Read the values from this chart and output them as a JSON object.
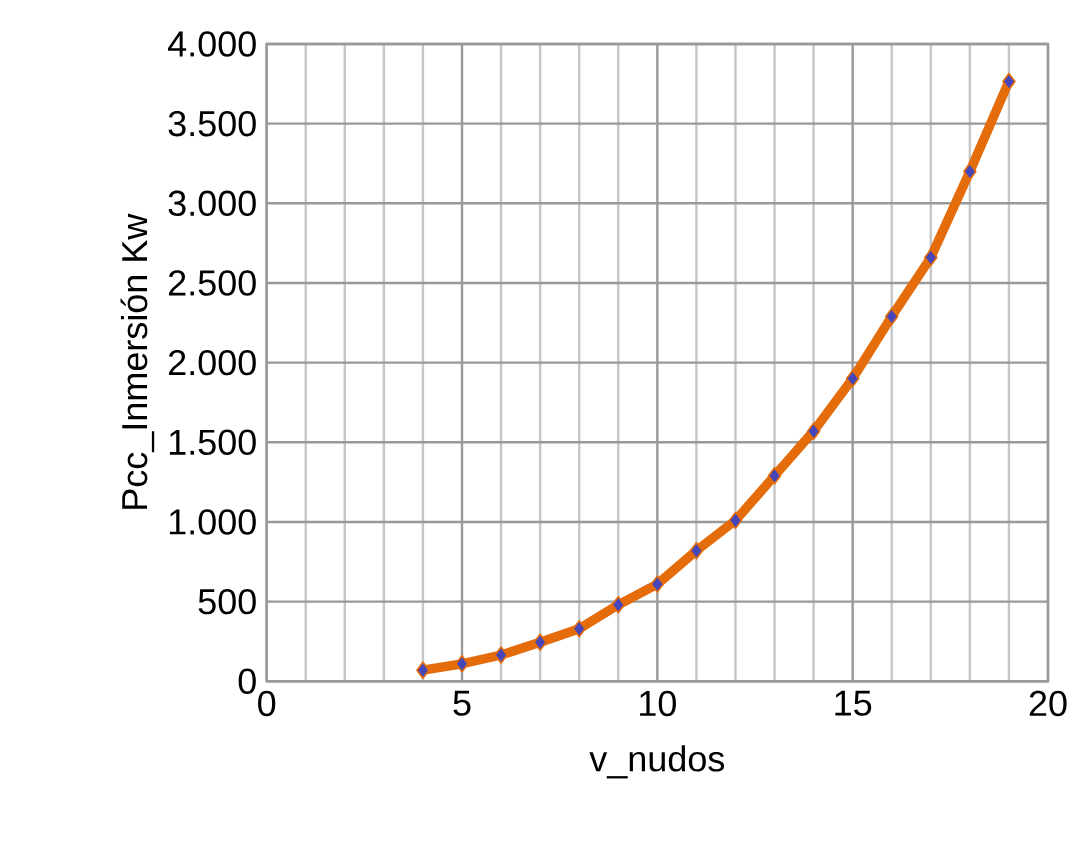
{
  "chart_data": {
    "type": "line",
    "xlabel": "v_nudos",
    "ylabel": "Pcc_Inmersión Kw",
    "x": [
      4,
      5,
      6,
      7,
      8,
      9,
      10,
      11,
      12,
      13,
      14,
      15,
      16,
      17,
      18,
      19
    ],
    "values": [
      70,
      110,
      165,
      245,
      330,
      480,
      610,
      820,
      1010,
      1290,
      1570,
      1900,
      2290,
      2660,
      3200,
      3765
    ],
    "color": "#e46c0a",
    "marker": "diamond",
    "line_style": "solid",
    "grid": true,
    "xlim": [
      0,
      20
    ],
    "xticks": [
      0,
      5,
      10,
      15,
      20
    ],
    "ylim": [
      0,
      4000
    ],
    "yticks": [
      0,
      500,
      {
        "value": 1000,
        "label": "1.000"
      },
      {
        "value": 1500,
        "label": "1.500"
      },
      {
        "value": 2000,
        "label": "2.000"
      },
      {
        "value": 2500,
        "label": "2.500"
      },
      {
        "value": 3000,
        "label": "3.000"
      },
      {
        "value": 3500,
        "label": "3.500"
      },
      {
        "value": 4000,
        "label": "4.000"
      }
    ]
  }
}
